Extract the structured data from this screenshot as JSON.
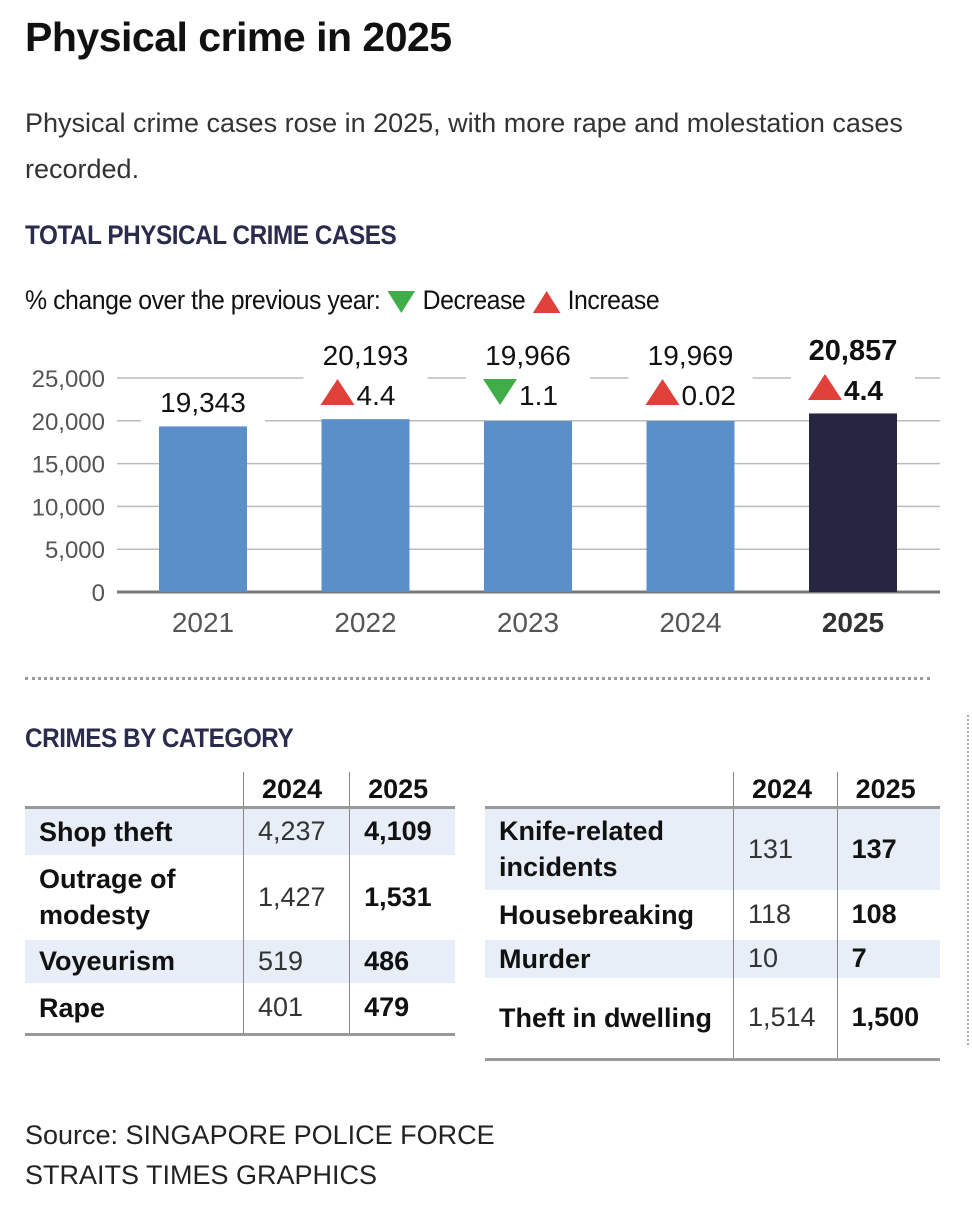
{
  "title": "Physical crime in 2025",
  "subtitle": "Physical crime cases rose in 2025, with more rape and molestation cases recorded.",
  "chart_data": {
    "type": "bar",
    "title": "TOTAL PHYSICAL CRIME CASES",
    "legend": {
      "prefix": "% change over the previous year:",
      "decrease": "Decrease",
      "increase": "Increase",
      "placement": "top-left"
    },
    "categories": [
      "2021",
      "2022",
      "2023",
      "2024",
      "2025"
    ],
    "values": [
      19343,
      20193,
      19966,
      19969,
      20857
    ],
    "value_labels": [
      "19,343",
      "20,193",
      "19,966",
      "19,969",
      "20,857"
    ],
    "pct_change": [
      null,
      "4.4",
      "1.1",
      "0.02",
      "4.4"
    ],
    "direction": [
      null,
      "increase",
      "decrease",
      "increase",
      "increase"
    ],
    "highlight": "2025",
    "ylim": [
      0,
      25000
    ],
    "yticks": [
      0,
      5000,
      10000,
      15000,
      20000,
      25000
    ],
    "ytick_labels": [
      "0",
      "5,000",
      "10,000",
      "15,000",
      "20,000",
      "25,000"
    ],
    "grid": true,
    "colors": {
      "bar": "#5b8fc9",
      "highlight": "#262640",
      "increase": "#e0403a",
      "decrease": "#3fae49"
    }
  },
  "categories_section": {
    "title": "CRIMES BY CATEGORY",
    "headers": [
      "2024",
      "2025"
    ],
    "left": [
      {
        "name": "Shop theft",
        "v2024": "4,237",
        "v2025": "4,109"
      },
      {
        "name": "Outrage of modesty",
        "v2024": "1,427",
        "v2025": "1,531"
      },
      {
        "name": "Voyeurism",
        "v2024": "519",
        "v2025": "486"
      },
      {
        "name": "Rape",
        "v2024": "401",
        "v2025": "479"
      }
    ],
    "right": [
      {
        "name": "Knife-related incidents",
        "v2024": "131",
        "v2025": "137"
      },
      {
        "name": "Housebreaking",
        "v2024": "118",
        "v2025": "108"
      },
      {
        "name": "Murder",
        "v2024": "10",
        "v2025": "7"
      },
      {
        "name": "Theft in dwelling",
        "v2024": "1,514",
        "v2025": "1,500"
      }
    ]
  },
  "source": "Source: SINGAPORE POLICE FORCE",
  "credit": "STRAITS TIMES GRAPHICS"
}
